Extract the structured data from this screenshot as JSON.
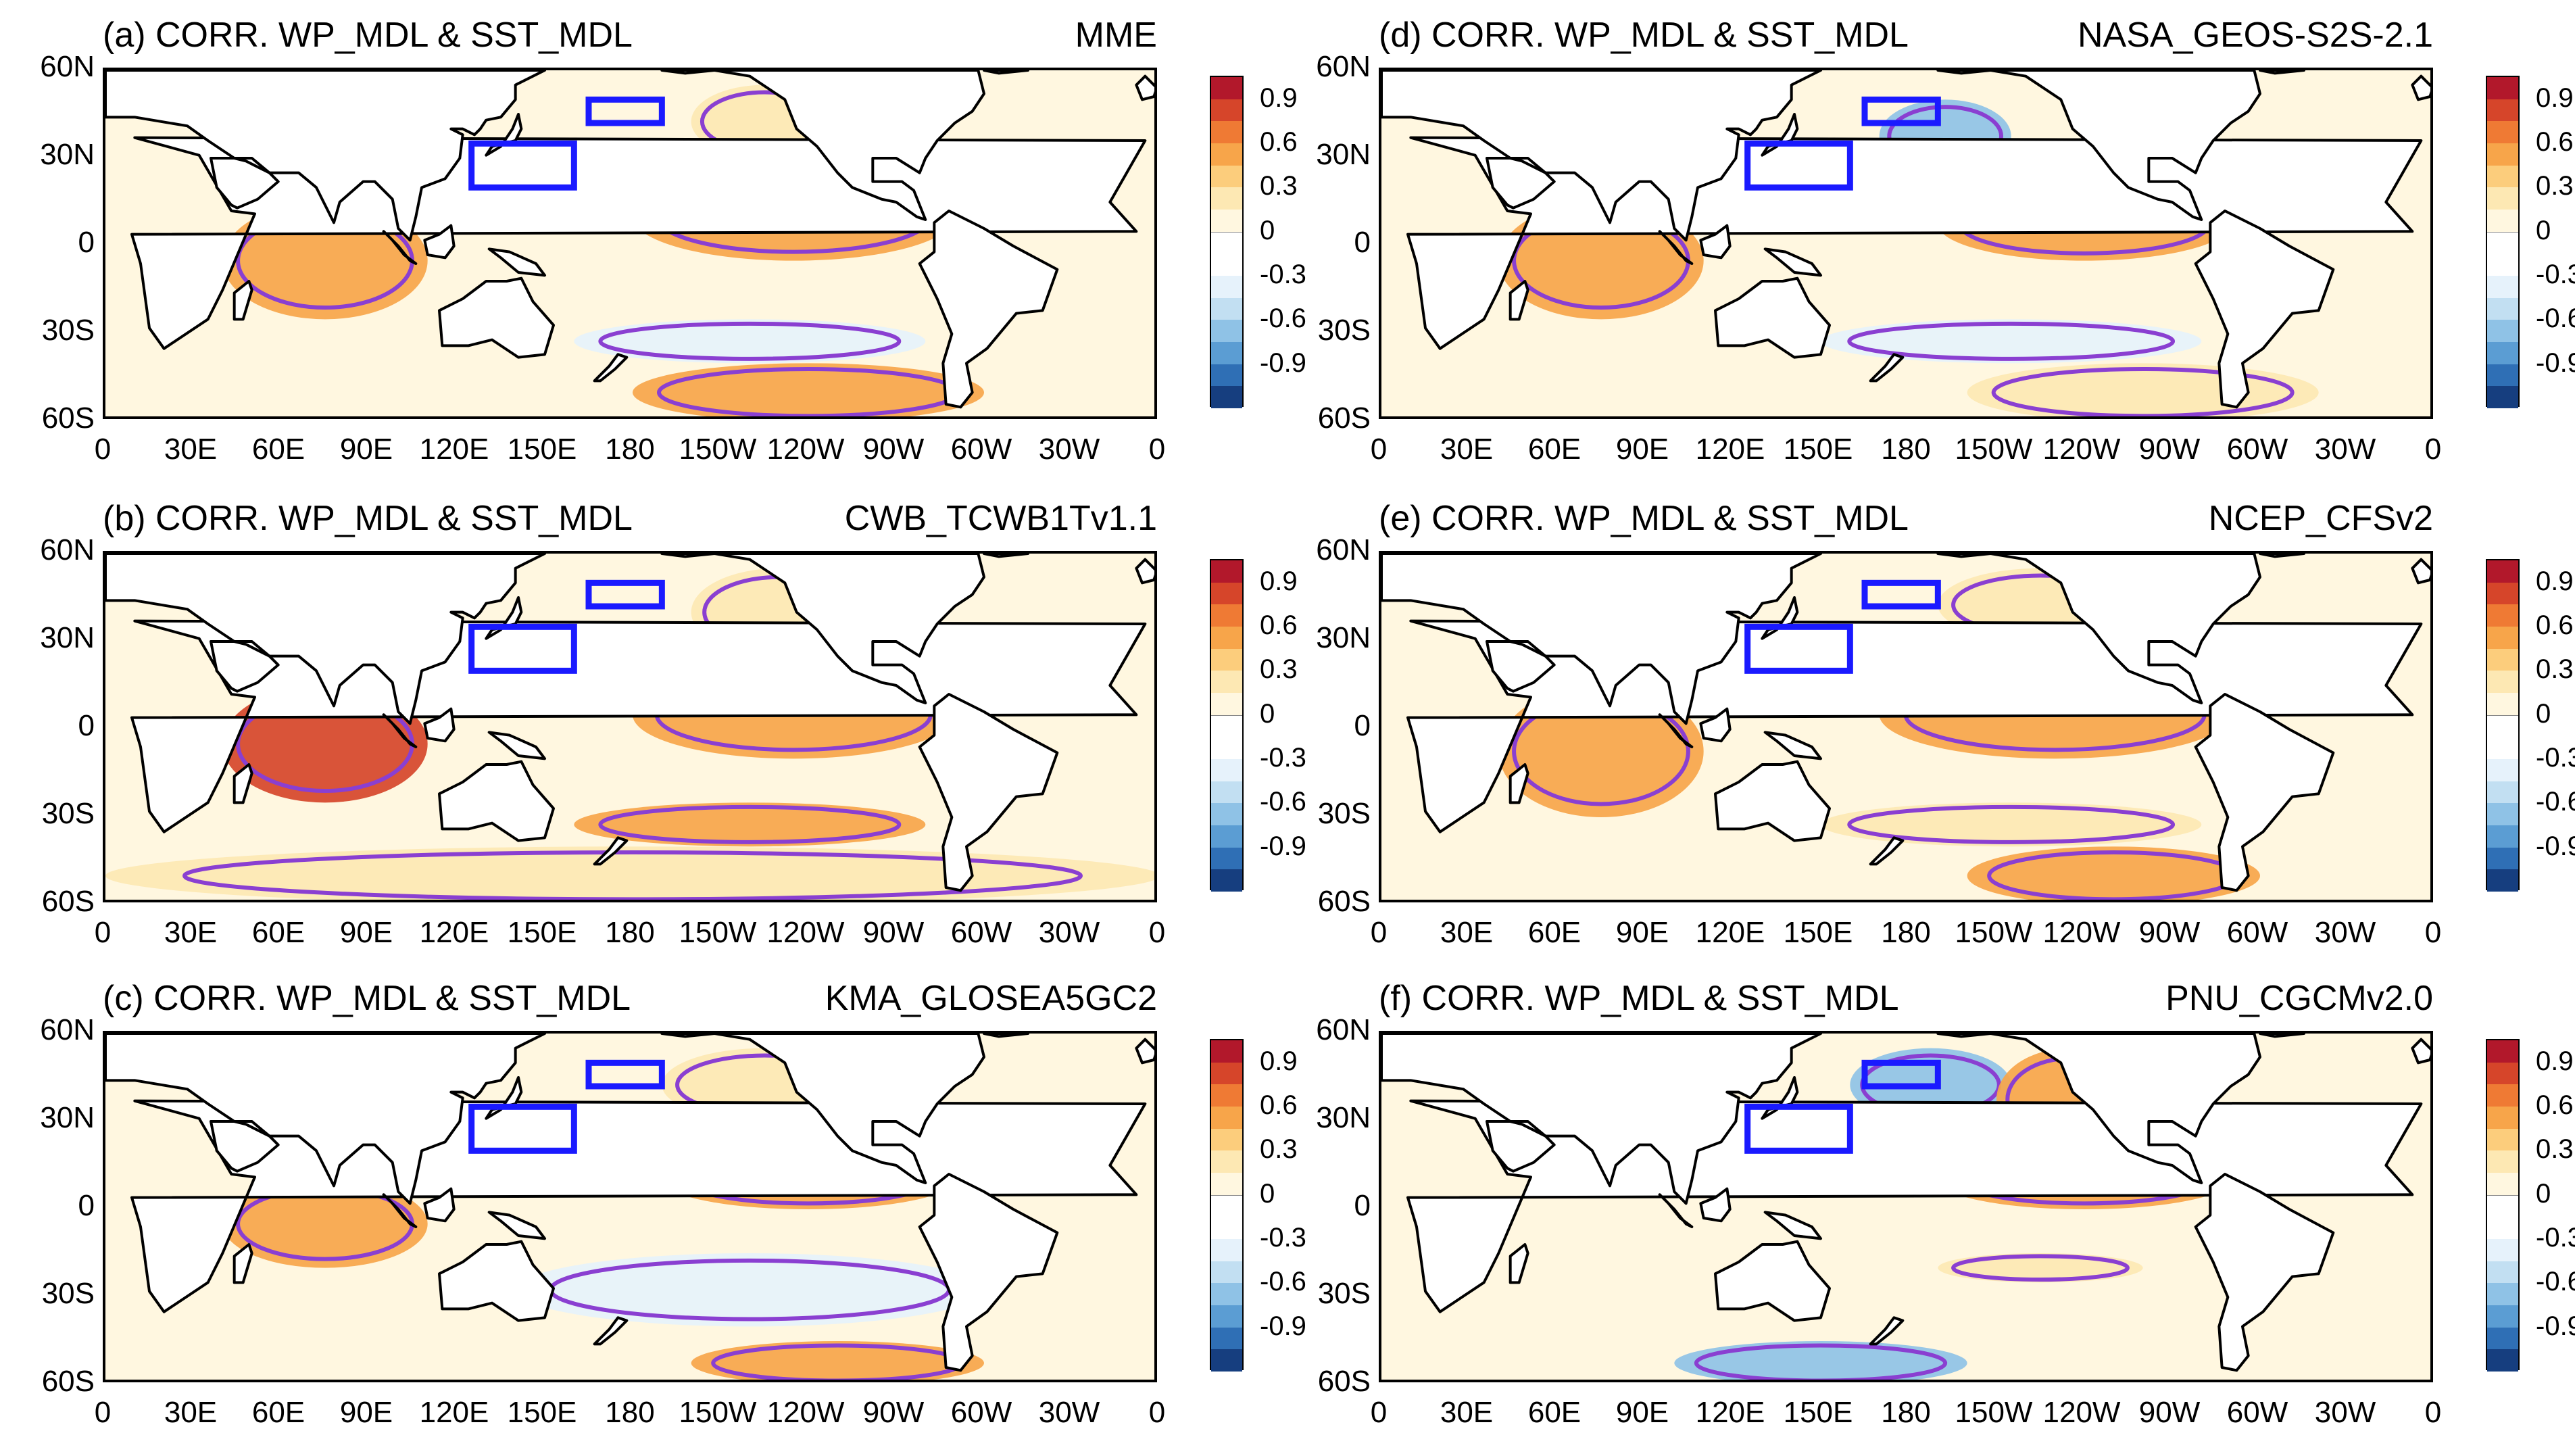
{
  "colorbar": {
    "labels": [
      "0.9",
      "0.6",
      "0.3",
      "0",
      "-0.3",
      "-0.6",
      "-0.9"
    ],
    "colors": [
      "#b2182b",
      "#d6452a",
      "#ef7a34",
      "#f7a54a",
      "#fccd7c",
      "#fde8b3",
      "#fff7e0",
      "#ffffff",
      "#ffffff",
      "#e6f2fb",
      "#c2dff2",
      "#8fc2e6",
      "#5b9dd3",
      "#2f6fb5",
      "#163e7f"
    ]
  },
  "axes": {
    "lat_labels": [
      "60N",
      "30N",
      "0",
      "30S",
      "60S"
    ],
    "lon_labels": [
      "0",
      "30E",
      "60E",
      "90E",
      "120E",
      "150E",
      "180",
      "150W",
      "120W",
      "90W",
      "60W",
      "30W",
      "0"
    ]
  },
  "chart_data": [
    {
      "type": "heatmap",
      "panel": "a",
      "title": "(a) CORR. WP_MDL & SST_MDL",
      "model": "MME",
      "variable": "correlation",
      "xlim": [
        0,
        360
      ],
      "ylim": [
        -60,
        60
      ],
      "boxes": [
        {
          "lon": [
            125,
            160
          ],
          "lat": [
            20,
            35
          ]
        },
        {
          "lon": [
            165,
            190
          ],
          "lat": [
            42,
            50
          ]
        }
      ],
      "regions": [
        {
          "name": "indian-ocean",
          "lon": [
            40,
            110
          ],
          "lat": [
            -25,
            15
          ],
          "r": 0.6
        },
        {
          "name": "eastern-pacific",
          "lon": [
            180,
            290
          ],
          "lat": [
            -5,
            25
          ],
          "r": 0.6
        },
        {
          "name": "north-pacific-east",
          "lon": [
            200,
            250
          ],
          "lat": [
            30,
            55
          ],
          "r": 0.3
        },
        {
          "name": "south-pacific-band",
          "lon": [
            160,
            280
          ],
          "lat": [
            -40,
            -25
          ],
          "r": -0.3
        },
        {
          "name": "southern-ocean",
          "lon": [
            180,
            300
          ],
          "lat": [
            -60,
            -40
          ],
          "r": 0.6
        }
      ]
    },
    {
      "type": "heatmap",
      "panel": "b",
      "title": "(b) CORR. WP_MDL & SST_MDL",
      "model": "CWB_TCWB1Tv1.1",
      "variable": "correlation",
      "xlim": [
        0,
        360
      ],
      "ylim": [
        -60,
        60
      ],
      "boxes": [
        {
          "lon": [
            125,
            160
          ],
          "lat": [
            20,
            35
          ]
        },
        {
          "lon": [
            165,
            190
          ],
          "lat": [
            42,
            50
          ]
        }
      ],
      "regions": [
        {
          "name": "indian-ocean",
          "lon": [
            40,
            110
          ],
          "lat": [
            -25,
            15
          ],
          "r": 0.9
        },
        {
          "name": "eastern-pacific",
          "lon": [
            180,
            290
          ],
          "lat": [
            -10,
            20
          ],
          "r": 0.6
        },
        {
          "name": "north-pacific-east",
          "lon": [
            200,
            260
          ],
          "lat": [
            25,
            55
          ],
          "r": 0.3
        },
        {
          "name": "south-pacific-band",
          "lon": [
            160,
            280
          ],
          "lat": [
            -40,
            -25
          ],
          "r": 0.6
        },
        {
          "name": "southern-ocean",
          "lon": [
            0,
            360
          ],
          "lat": [
            -60,
            -40
          ],
          "r": 0.3
        }
      ]
    },
    {
      "type": "heatmap",
      "panel": "c",
      "title": "(c) CORR. WP_MDL & SST_MDL",
      "model": "KMA_GLOSEA5GC2",
      "variable": "correlation",
      "xlim": [
        0,
        360
      ],
      "ylim": [
        -60,
        60
      ],
      "boxes": [
        {
          "lon": [
            125,
            160
          ],
          "lat": [
            20,
            35
          ]
        },
        {
          "lon": [
            165,
            190
          ],
          "lat": [
            42,
            50
          ]
        }
      ],
      "regions": [
        {
          "name": "indian-ocean",
          "lon": [
            40,
            110
          ],
          "lat": [
            -20,
            10
          ],
          "r": 0.6
        },
        {
          "name": "eastern-pacific",
          "lon": [
            190,
            290
          ],
          "lat": [
            0,
            20
          ],
          "r": 0.6
        },
        {
          "name": "north-pacific-east",
          "lon": [
            190,
            260
          ],
          "lat": [
            30,
            55
          ],
          "r": 0.3
        },
        {
          "name": "south-pacific-band",
          "lon": [
            140,
            300
          ],
          "lat": [
            -40,
            -15
          ],
          "r": -0.3
        },
        {
          "name": "southern-ocean",
          "lon": [
            200,
            300
          ],
          "lat": [
            -60,
            -45
          ],
          "r": 0.6
        }
      ]
    },
    {
      "type": "heatmap",
      "panel": "d",
      "title": "(d) CORR. WP_MDL & SST_MDL",
      "model": "NASA_GEOS-S2S-2.1",
      "variable": "correlation",
      "xlim": [
        0,
        360
      ],
      "ylim": [
        -60,
        60
      ],
      "boxes": [
        {
          "lon": [
            125,
            160
          ],
          "lat": [
            20,
            35
          ]
        },
        {
          "lon": [
            165,
            190
          ],
          "lat": [
            42,
            50
          ]
        }
      ],
      "regions": [
        {
          "name": "indian-ocean",
          "lon": [
            40,
            110
          ],
          "lat": [
            -25,
            15
          ],
          "r": 0.6
        },
        {
          "name": "eastern-pacific",
          "lon": [
            190,
            290
          ],
          "lat": [
            -5,
            20
          ],
          "r": 0.6
        },
        {
          "name": "north-pacific-center",
          "lon": [
            170,
            215
          ],
          "lat": [
            25,
            50
          ],
          "r": -0.6
        },
        {
          "name": "south-pacific-band",
          "lon": [
            150,
            280
          ],
          "lat": [
            -40,
            -25
          ],
          "r": -0.3
        },
        {
          "name": "southern-ocean",
          "lon": [
            200,
            320
          ],
          "lat": [
            -60,
            -40
          ],
          "r": 0.3
        }
      ]
    },
    {
      "type": "heatmap",
      "panel": "e",
      "title": "(e) CORR. WP_MDL & SST_MDL",
      "model": "NCEP_CFSv2",
      "variable": "correlation",
      "xlim": [
        0,
        360
      ],
      "ylim": [
        -60,
        60
      ],
      "boxes": [
        {
          "lon": [
            125,
            160
          ],
          "lat": [
            20,
            35
          ]
        },
        {
          "lon": [
            165,
            190
          ],
          "lat": [
            42,
            50
          ]
        }
      ],
      "regions": [
        {
          "name": "indian-ocean",
          "lon": [
            40,
            110
          ],
          "lat": [
            -30,
            15
          ],
          "r": 0.6
        },
        {
          "name": "eastern-pacific",
          "lon": [
            170,
            290
          ],
          "lat": [
            -10,
            20
          ],
          "r": 0.6
        },
        {
          "name": "north-pacific-east",
          "lon": [
            190,
            260
          ],
          "lat": [
            30,
            55
          ],
          "r": 0.3
        },
        {
          "name": "south-pacific-band",
          "lon": [
            150,
            280
          ],
          "lat": [
            -40,
            -25
          ],
          "r": 0.3
        },
        {
          "name": "southern-ocean",
          "lon": [
            200,
            300
          ],
          "lat": [
            -60,
            -40
          ],
          "r": 0.6
        }
      ]
    },
    {
      "type": "heatmap",
      "panel": "f",
      "title": "(f) CORR. WP_MDL & SST_MDL",
      "model": "PNU_CGCMv2.0",
      "variable": "correlation",
      "xlim": [
        0,
        360
      ],
      "ylim": [
        -60,
        60
      ],
      "boxes": [
        {
          "lon": [
            125,
            160
          ],
          "lat": [
            20,
            35
          ]
        },
        {
          "lon": [
            165,
            190
          ],
          "lat": [
            42,
            50
          ]
        }
      ],
      "regions": [
        {
          "name": "north-pacific-center",
          "lon": [
            160,
            215
          ],
          "lat": [
            30,
            55
          ],
          "r": -0.6
        },
        {
          "name": "north-pacific-east",
          "lon": [
            210,
            260
          ],
          "lat": [
            20,
            55
          ],
          "r": 0.6
        },
        {
          "name": "eastern-pacific",
          "lon": [
            190,
            290
          ],
          "lat": [
            0,
            20
          ],
          "r": 0.6
        },
        {
          "name": "south-pacific-band",
          "lon": [
            190,
            260
          ],
          "lat": [
            -25,
            -15
          ],
          "r": 0.3
        },
        {
          "name": "southern-ocean",
          "lon": [
            100,
            200
          ],
          "lat": [
            -60,
            -45
          ],
          "r": -0.6
        }
      ]
    }
  ]
}
